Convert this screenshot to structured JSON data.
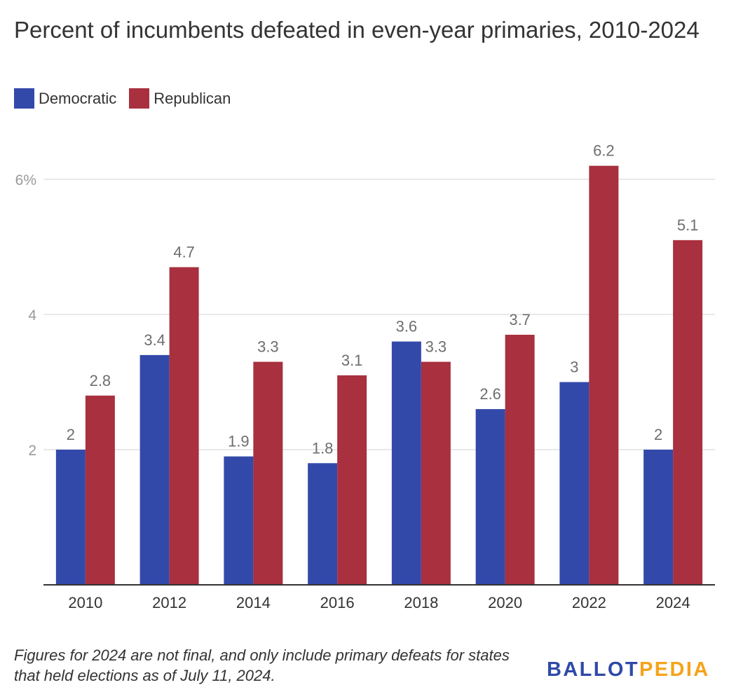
{
  "chart_data": {
    "type": "bar",
    "title": "Percent of incumbents defeated in even-year primaries, 2010-2024",
    "categories": [
      "2010",
      "2012",
      "2014",
      "2016",
      "2018",
      "2020",
      "2022",
      "2024"
    ],
    "series": [
      {
        "name": "Democratic",
        "color": "#3349aa",
        "values": [
          2,
          3.4,
          1.9,
          1.8,
          3.6,
          2.6,
          3,
          2
        ],
        "labels": [
          "2",
          "3.4",
          "1.9",
          "1.8",
          "3.6",
          "2.6",
          "3",
          "2"
        ]
      },
      {
        "name": "Republican",
        "color": "#a8303f",
        "values": [
          2.8,
          4.7,
          3.3,
          3.1,
          3.3,
          3.7,
          6.2,
          5.1
        ],
        "labels": [
          "2.8",
          "4.7",
          "3.3",
          "3.1",
          "3.3",
          "3.7",
          "6.2",
          "5.1"
        ]
      }
    ],
    "y_ticks": [
      {
        "value": 2,
        "label": "2"
      },
      {
        "value": 4,
        "label": "4"
      },
      {
        "value": 6,
        "label": "6%"
      }
    ],
    "ylim": [
      0,
      6.2
    ],
    "xlabel": "",
    "ylabel": "",
    "grid": true,
    "legend_position": "top-left"
  },
  "footnote": "Figures for 2024 are not final, and only include primary defeats for states that held elections as of July 11, 2024.",
  "logo": {
    "part1": "BALLOT",
    "part2": "PEDIA"
  }
}
